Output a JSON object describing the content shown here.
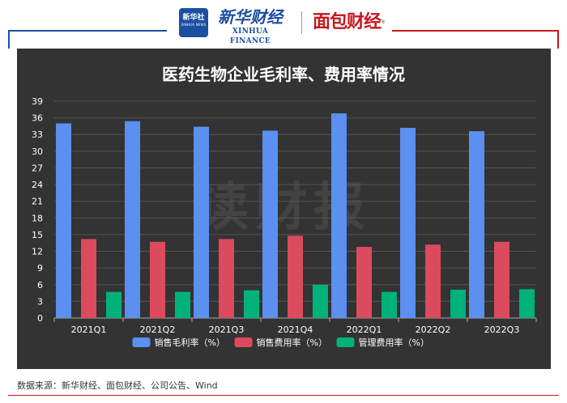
{
  "header": {
    "xinhua_badge_cn": "新华社",
    "xinhua_badge_en": "XINHUA NEWS",
    "xinhua_cn": "新华财经",
    "xinhua_en": "XINHUA FINANCE",
    "mianbao": "面包财经",
    "mianbao_mark": "®"
  },
  "colors": {
    "panel_bg": "#333333",
    "grid": "#555555",
    "text": "#ffffff",
    "series": [
      "#5b8ff0",
      "#dc4a5e",
      "#00b27a"
    ]
  },
  "watermark": "读财报",
  "chart_data": {
    "type": "bar",
    "title": "医药生物企业毛利率、费用率情况",
    "categories": [
      "2021Q1",
      "2021Q2",
      "2021Q3",
      "2021Q4",
      "2022Q1",
      "2022Q2",
      "2022Q3"
    ],
    "series": [
      {
        "name": "销售毛利率（%）",
        "values": [
          35.0,
          35.4,
          34.4,
          33.7,
          36.8,
          34.2,
          33.6
        ]
      },
      {
        "name": "销售费用率（%）",
        "values": [
          14.2,
          13.7,
          14.2,
          14.8,
          12.8,
          13.2,
          13.7
        ]
      },
      {
        "name": "管理费用率（%）",
        "values": [
          4.7,
          4.7,
          5.0,
          6.0,
          4.7,
          5.1,
          5.2
        ]
      }
    ],
    "yticks": [
      0,
      3,
      6,
      9,
      12,
      15,
      18,
      21,
      24,
      27,
      30,
      33,
      36,
      39
    ],
    "ylim": [
      0,
      39
    ],
    "grid": true,
    "legend_position": "bottom"
  },
  "source": "数据来源：新华财经、面包财经、公司公告、Wind"
}
